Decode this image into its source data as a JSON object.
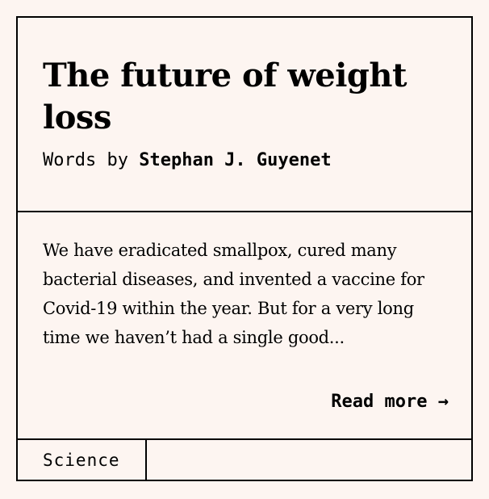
{
  "article": {
    "title": "The future of weight loss",
    "byline_prefix": "Words by ",
    "author": "Stephan J. Guyenet",
    "excerpt": "We have eradicated smallpox, cured many bacterial diseases, and invented a vaccine for Covid-19 within the year. But for a very long time we haven’t had a single good...",
    "read_more_label": "Read more →",
    "category": "Science"
  },
  "colors": {
    "background": "#fdf5f1",
    "border": "#000000",
    "text": "#000000"
  }
}
